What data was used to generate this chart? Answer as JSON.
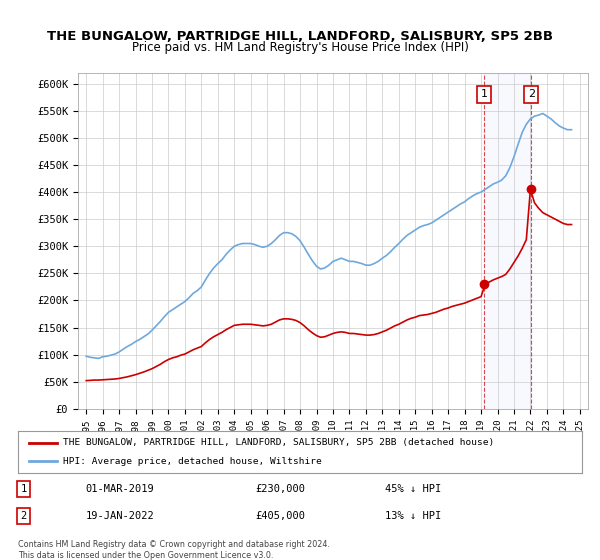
{
  "title": "THE BUNGALOW, PARTRIDGE HILL, LANDFORD, SALISBURY, SP5 2BB",
  "subtitle": "Price paid vs. HM Land Registry's House Price Index (HPI)",
  "legend_line1": "THE BUNGALOW, PARTRIDGE HILL, LANDFORD, SALISBURY, SP5 2BB (detached house)",
  "legend_line2": "HPI: Average price, detached house, Wiltshire",
  "footnote": "Contains HM Land Registry data © Crown copyright and database right 2024.\nThis data is licensed under the Open Government Licence v3.0.",
  "sale1_label": "1",
  "sale1_date": "01-MAR-2019",
  "sale1_price": "£230,000",
  "sale1_hpi": "45% ↓ HPI",
  "sale2_label": "2",
  "sale2_date": "19-JAN-2022",
  "sale2_price": "£405,000",
  "sale2_hpi": "13% ↓ HPI",
  "hpi_color": "#6fa8dc",
  "price_color": "#cc0000",
  "dot_color": "#cc0000",
  "sale1_x": 2019.17,
  "sale1_y": 230000,
  "sale2_x": 2022.05,
  "sale2_y": 405000,
  "ylim": [
    0,
    620000
  ],
  "xlim_left": 1994.5,
  "xlim_right": 2025.5,
  "yticks": [
    0,
    50000,
    100000,
    150000,
    200000,
    250000,
    300000,
    350000,
    400000,
    450000,
    500000,
    550000,
    600000
  ],
  "ytick_labels": [
    "£0",
    "£50K",
    "£100K",
    "£150K",
    "£200K",
    "£250K",
    "£300K",
    "£350K",
    "£400K",
    "£450K",
    "£500K",
    "£550K",
    "£600K"
  ],
  "xticks": [
    1995,
    1996,
    1997,
    1998,
    1999,
    2000,
    2001,
    2002,
    2003,
    2004,
    2005,
    2006,
    2007,
    2008,
    2009,
    2010,
    2011,
    2012,
    2013,
    2014,
    2015,
    2016,
    2017,
    2018,
    2019,
    2020,
    2021,
    2022,
    2023,
    2024,
    2025
  ],
  "hpi_x": [
    1995.0,
    1995.25,
    1995.5,
    1995.75,
    1996.0,
    1996.25,
    1996.5,
    1996.75,
    1997.0,
    1997.25,
    1997.5,
    1997.75,
    1998.0,
    1998.25,
    1998.5,
    1998.75,
    1999.0,
    1999.25,
    1999.5,
    1999.75,
    2000.0,
    2000.25,
    2000.5,
    2000.75,
    2001.0,
    2001.25,
    2001.5,
    2001.75,
    2002.0,
    2002.25,
    2002.5,
    2002.75,
    2003.0,
    2003.25,
    2003.5,
    2003.75,
    2004.0,
    2004.25,
    2004.5,
    2004.75,
    2005.0,
    2005.25,
    2005.5,
    2005.75,
    2006.0,
    2006.25,
    2006.5,
    2006.75,
    2007.0,
    2007.25,
    2007.5,
    2007.75,
    2008.0,
    2008.25,
    2008.5,
    2008.75,
    2009.0,
    2009.25,
    2009.5,
    2009.75,
    2010.0,
    2010.25,
    2010.5,
    2010.75,
    2011.0,
    2011.25,
    2011.5,
    2011.75,
    2012.0,
    2012.25,
    2012.5,
    2012.75,
    2013.0,
    2013.25,
    2013.5,
    2013.75,
    2014.0,
    2014.25,
    2014.5,
    2014.75,
    2015.0,
    2015.25,
    2015.5,
    2015.75,
    2016.0,
    2016.25,
    2016.5,
    2016.75,
    2017.0,
    2017.25,
    2017.5,
    2017.75,
    2018.0,
    2018.25,
    2018.5,
    2018.75,
    2019.0,
    2019.25,
    2019.5,
    2019.75,
    2020.0,
    2020.25,
    2020.5,
    2020.75,
    2021.0,
    2021.25,
    2021.5,
    2021.75,
    2022.0,
    2022.25,
    2022.5,
    2022.75,
    2023.0,
    2023.25,
    2023.5,
    2023.75,
    2024.0,
    2024.25,
    2024.5
  ],
  "hpi_y": [
    97000,
    95000,
    94000,
    93000,
    96000,
    97000,
    99000,
    101000,
    105000,
    110000,
    115000,
    119000,
    124000,
    128000,
    133000,
    138000,
    145000,
    153000,
    161000,
    170000,
    178000,
    183000,
    188000,
    193000,
    198000,
    205000,
    213000,
    218000,
    225000,
    238000,
    250000,
    260000,
    268000,
    275000,
    285000,
    293000,
    300000,
    303000,
    305000,
    305000,
    305000,
    303000,
    300000,
    298000,
    300000,
    305000,
    312000,
    320000,
    325000,
    325000,
    323000,
    318000,
    310000,
    298000,
    285000,
    273000,
    263000,
    258000,
    260000,
    265000,
    272000,
    275000,
    278000,
    275000,
    272000,
    272000,
    270000,
    268000,
    265000,
    265000,
    268000,
    272000,
    278000,
    283000,
    290000,
    298000,
    305000,
    313000,
    320000,
    325000,
    330000,
    335000,
    338000,
    340000,
    343000,
    348000,
    353000,
    358000,
    363000,
    368000,
    373000,
    378000,
    382000,
    388000,
    393000,
    397000,
    400000,
    405000,
    410000,
    415000,
    418000,
    422000,
    430000,
    445000,
    465000,
    488000,
    510000,
    525000,
    535000,
    540000,
    542000,
    545000,
    540000,
    535000,
    528000,
    522000,
    518000,
    515000,
    515000
  ],
  "price_x": [
    1995.0,
    1995.25,
    1995.5,
    1995.75,
    1996.0,
    1996.25,
    1996.5,
    1996.75,
    1997.0,
    1997.25,
    1997.5,
    1997.75,
    1998.0,
    1998.25,
    1998.5,
    1998.75,
    1999.0,
    1999.25,
    1999.5,
    1999.75,
    2000.0,
    2000.25,
    2000.5,
    2000.75,
    2001.0,
    2001.25,
    2001.5,
    2001.75,
    2002.0,
    2002.25,
    2002.5,
    2002.75,
    2003.0,
    2003.25,
    2003.5,
    2003.75,
    2004.0,
    2004.25,
    2004.5,
    2004.75,
    2005.0,
    2005.25,
    2005.5,
    2005.75,
    2006.0,
    2006.25,
    2006.5,
    2006.75,
    2007.0,
    2007.25,
    2007.5,
    2007.75,
    2008.0,
    2008.25,
    2008.5,
    2008.75,
    2009.0,
    2009.25,
    2009.5,
    2009.75,
    2010.0,
    2010.25,
    2010.5,
    2010.75,
    2011.0,
    2011.25,
    2011.5,
    2011.75,
    2012.0,
    2012.25,
    2012.5,
    2012.75,
    2013.0,
    2013.25,
    2013.5,
    2013.75,
    2014.0,
    2014.25,
    2014.5,
    2014.75,
    2015.0,
    2015.25,
    2015.5,
    2015.75,
    2016.0,
    2016.25,
    2016.5,
    2016.75,
    2017.0,
    2017.25,
    2017.5,
    2017.75,
    2018.0,
    2018.25,
    2018.5,
    2018.75,
    2019.0,
    2019.25,
    2019.5,
    2019.75,
    2020.0,
    2020.25,
    2020.5,
    2020.75,
    2021.0,
    2021.25,
    2021.5,
    2021.75,
    2022.0,
    2022.25,
    2022.5,
    2022.75,
    2023.0,
    2023.25,
    2023.5,
    2023.75,
    2024.0,
    2024.25,
    2024.5
  ],
  "price_y": [
    52000,
    52500,
    53000,
    53000,
    53500,
    54000,
    54500,
    55000,
    56000,
    57500,
    59000,
    61000,
    63000,
    65500,
    68000,
    71000,
    74000,
    78000,
    82000,
    87000,
    91000,
    94000,
    96000,
    99000,
    101000,
    105000,
    109000,
    112000,
    115000,
    122000,
    128000,
    133000,
    137000,
    141000,
    146000,
    150000,
    154000,
    155000,
    156000,
    156000,
    156000,
    155000,
    154000,
    153000,
    154000,
    156000,
    160000,
    164000,
    166000,
    166000,
    165000,
    163000,
    159000,
    153000,
    146000,
    140000,
    135000,
    132000,
    133000,
    136000,
    139000,
    141000,
    142000,
    141000,
    139000,
    139000,
    138000,
    137000,
    136000,
    136000,
    137000,
    139000,
    142000,
    145000,
    149000,
    153000,
    156000,
    160000,
    164000,
    167000,
    169000,
    172000,
    173000,
    174000,
    176000,
    178000,
    181000,
    184000,
    186000,
    189000,
    191000,
    193000,
    195000,
    198000,
    201000,
    204000,
    207000,
    230000,
    234000,
    238000,
    241000,
    244000,
    248000,
    258000,
    270000,
    282000,
    296000,
    312000,
    405000,
    380000,
    370000,
    362000,
    358000,
    354000,
    350000,
    346000,
    342000,
    340000,
    340000
  ]
}
